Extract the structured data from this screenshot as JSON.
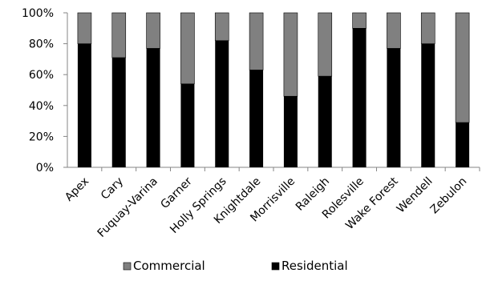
{
  "chart_data": {
    "type": "bar",
    "stacked": true,
    "percent_stacked": true,
    "categories": [
      "Apex",
      "Cary",
      "Fuquay-Varina",
      "Garner",
      "Holly Springs",
      "Knightdale",
      "Morrisville",
      "Raleigh",
      "Rolesville",
      "Wake Forest",
      "Wendell",
      "Zebulon"
    ],
    "series": [
      {
        "name": "Residential",
        "values": [
          80,
          71,
          77,
          54,
          82,
          63,
          46,
          59,
          90,
          77,
          80,
          29
        ]
      },
      {
        "name": "Commercial",
        "values": [
          20,
          29,
          23,
          46,
          18,
          37,
          54,
          41,
          10,
          23,
          20,
          71
        ]
      }
    ],
    "ylim": [
      0,
      100
    ],
    "yticks": [
      "0%",
      "20%",
      "40%",
      "60%",
      "80%",
      "100%"
    ],
    "legend": {
      "position": "bottom",
      "entries": [
        "Commercial",
        "Residential"
      ]
    },
    "colors": {
      "Residential": "#000000",
      "Commercial": "#808080"
    },
    "grid": false
  }
}
